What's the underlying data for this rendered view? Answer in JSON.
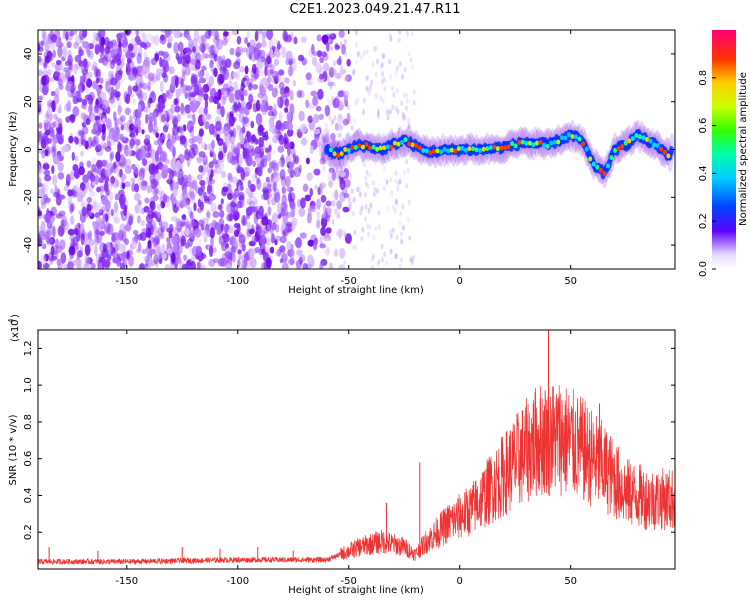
{
  "title": "C2E1.2023.049.21.47.R11",
  "chart_data": [
    {
      "type": "heatmap",
      "xlabel": "Height of straight line (km)",
      "ylabel": "Frequency (Hz)",
      "xlim": [
        -190,
        97
      ],
      "ylim": [
        -50,
        50
      ],
      "x_ticks": [
        -150,
        -100,
        -50,
        0,
        50
      ],
      "y_ticks": [
        -40,
        -20,
        0,
        20,
        40
      ],
      "colorbar": {
        "label": "Normalized spectral amplitude",
        "range": [
          0,
          1
        ],
        "ticks": [
          0.0,
          0.2,
          0.4,
          0.6,
          0.8
        ],
        "tick_labels": [
          "0.0",
          "0.2",
          "0.4",
          "0.6",
          "0.8"
        ]
      },
      "ridge": {
        "description_points": [
          {
            "x": -60,
            "y": 0
          },
          {
            "x": -55,
            "y": -2
          },
          {
            "x": -45,
            "y": 2
          },
          {
            "x": -35,
            "y": 0
          },
          {
            "x": -25,
            "y": 4
          },
          {
            "x": -15,
            "y": -1
          },
          {
            "x": 0,
            "y": 0
          },
          {
            "x": 10,
            "y": 0
          },
          {
            "x": 20,
            "y": 1
          },
          {
            "x": 30,
            "y": 3
          },
          {
            "x": 40,
            "y": 2
          },
          {
            "x": 50,
            "y": 6
          },
          {
            "x": 55,
            "y": 4
          },
          {
            "x": 60,
            "y": -6
          },
          {
            "x": 65,
            "y": -10
          },
          {
            "x": 70,
            "y": 0
          },
          {
            "x": 75,
            "y": 2
          },
          {
            "x": 80,
            "y": 6
          },
          {
            "x": 88,
            "y": 2
          },
          {
            "x": 95,
            "y": -3
          }
        ]
      }
    },
    {
      "type": "line",
      "xlabel": "Height of straight line (km)",
      "ylabel": "SNR (10 * v/v)",
      "yscale_label": "(x10",
      "yscale_exp": "4",
      "xlim": [
        -190,
        97
      ],
      "ylim": [
        0,
        1.3
      ],
      "x_ticks": [
        -150,
        -100,
        -50,
        0,
        50
      ],
      "y_ticks": [
        0.2,
        0.4,
        0.6,
        0.8,
        1.0,
        1.2
      ],
      "y_tick_labels": [
        "0.2",
        "0.4",
        "0.6",
        "0.8",
        "1.0",
        "1.2"
      ],
      "color": "#ee3333",
      "envelope": [
        {
          "x": -190,
          "y": 0.04
        },
        {
          "x": -150,
          "y": 0.04
        },
        {
          "x": -100,
          "y": 0.05
        },
        {
          "x": -60,
          "y": 0.05
        },
        {
          "x": -45,
          "y": 0.12
        },
        {
          "x": -35,
          "y": 0.15
        },
        {
          "x": -25,
          "y": 0.12
        },
        {
          "x": -20,
          "y": 0.08
        },
        {
          "x": -15,
          "y": 0.15
        },
        {
          "x": -5,
          "y": 0.25
        },
        {
          "x": 5,
          "y": 0.32
        },
        {
          "x": 15,
          "y": 0.45
        },
        {
          "x": 25,
          "y": 0.58
        },
        {
          "x": 35,
          "y": 0.7
        },
        {
          "x": 45,
          "y": 0.72
        },
        {
          "x": 55,
          "y": 0.65
        },
        {
          "x": 65,
          "y": 0.55
        },
        {
          "x": 75,
          "y": 0.42
        },
        {
          "x": 85,
          "y": 0.38
        },
        {
          "x": 97,
          "y": 0.38
        }
      ],
      "spikes": [
        {
          "x": -185,
          "y": 0.12
        },
        {
          "x": -163,
          "y": 0.1
        },
        {
          "x": -125,
          "y": 0.12
        },
        {
          "x": -108,
          "y": 0.11
        },
        {
          "x": -91,
          "y": 0.12
        },
        {
          "x": -75,
          "y": 0.1
        },
        {
          "x": -33,
          "y": 0.36
        },
        {
          "x": -18,
          "y": 0.58
        },
        {
          "x": 40,
          "y": 1.35
        },
        {
          "x": 63,
          "y": 0.9
        }
      ]
    }
  ],
  "colors": {
    "axis": "#000000",
    "snr_line": "#ee3333",
    "noise_purple": "#7a1ee6"
  }
}
